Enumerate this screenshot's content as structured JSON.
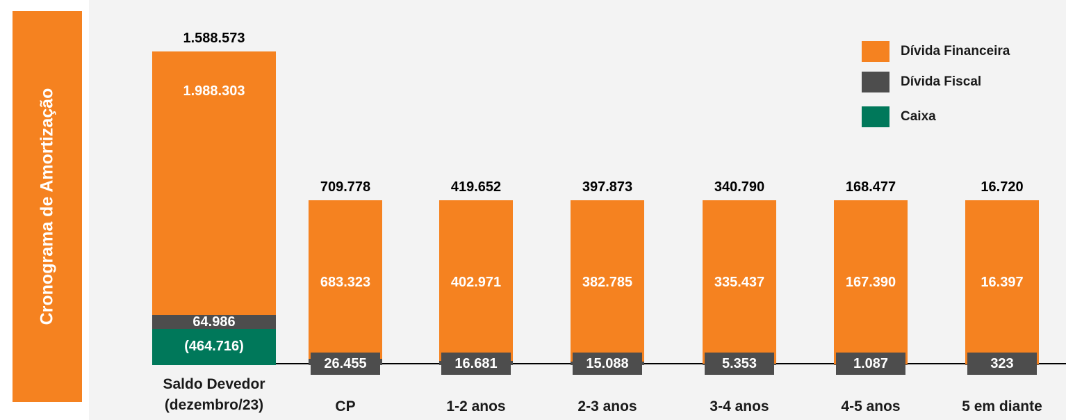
{
  "chart_data": {
    "type": "bar",
    "title": "Cronograma de Amortização",
    "categories": [
      "Saldo Devedor (dezembro/23)",
      "CP",
      "1-2 anos",
      "2-3 anos",
      "3-4 anos",
      "4-5 anos",
      "5 em diante"
    ],
    "totals": {
      "values": [
        1588573,
        709778,
        419652,
        397873,
        340790,
        168477,
        16720
      ],
      "value_labels": [
        "1.588.573",
        "709.778",
        "419.652",
        "397.873",
        "340.790",
        "168.477",
        "16.720"
      ]
    },
    "series": [
      {
        "name": "Dívida Financeira",
        "color": "#f58220",
        "values": [
          1988303,
          683323,
          402971,
          382785,
          335437,
          167390,
          16397
        ],
        "value_labels": [
          "1.988.303",
          "683.323",
          "402.971",
          "382.785",
          "335.437",
          "167.390",
          "16.397"
        ]
      },
      {
        "name": "Dívida Fiscal",
        "color": "#4d4d4d",
        "values": [
          64986,
          26455,
          16681,
          15088,
          5353,
          1087,
          323
        ],
        "value_labels": [
          "64.986",
          "26.455",
          "16.681",
          "15.088",
          "5.353",
          "1.087",
          "323"
        ]
      },
      {
        "name": "Caixa",
        "color": "#00785a",
        "values": [
          -464716,
          null,
          null,
          null,
          null,
          null,
          null
        ],
        "value_labels": [
          "(464.716)",
          null,
          null,
          null,
          null,
          null,
          null
        ]
      }
    ],
    "legend": "top-right"
  }
}
